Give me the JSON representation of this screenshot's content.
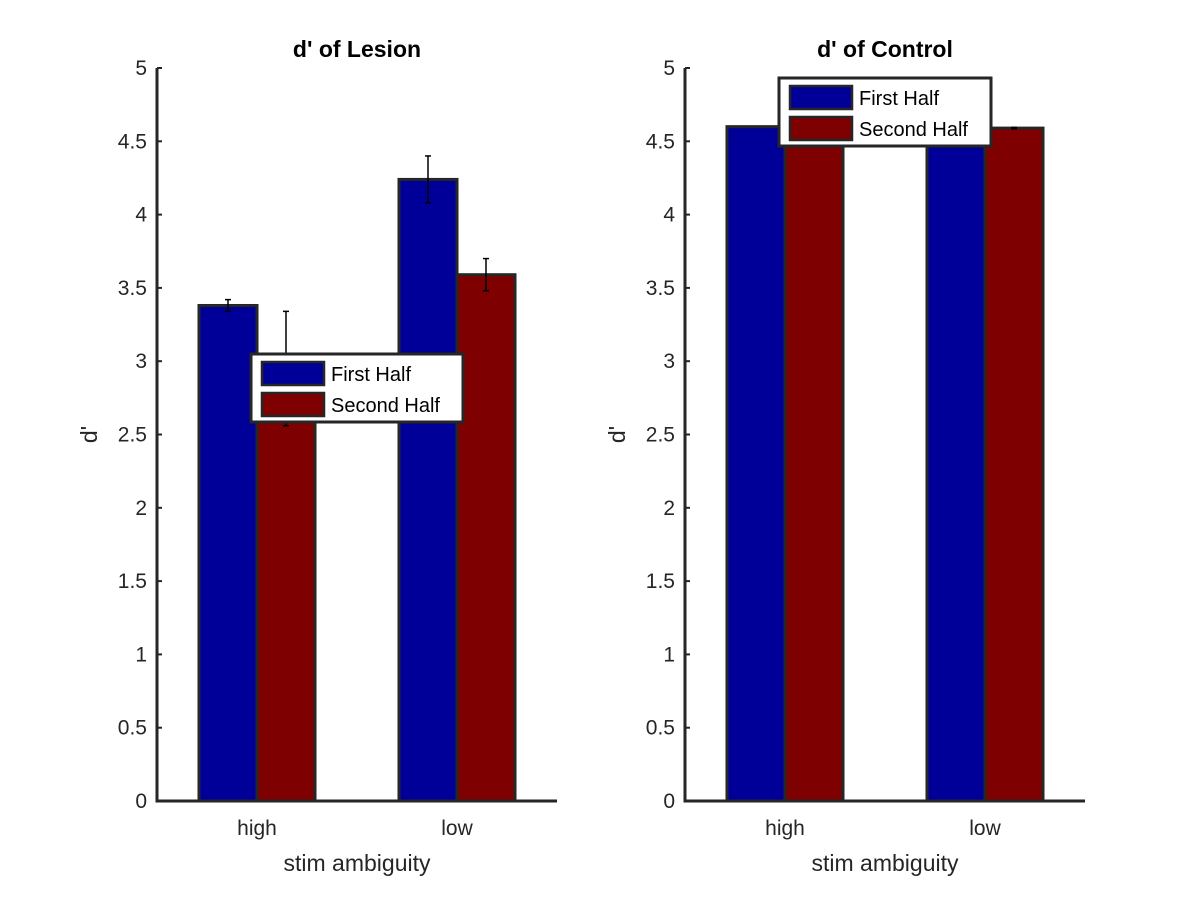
{
  "chart_data": [
    {
      "type": "bar",
      "title": "d' of Lesion",
      "xlabel": "stim ambiguity",
      "ylabel": "d'",
      "categories": [
        "high",
        "low"
      ],
      "ylim": [
        0,
        5
      ],
      "yticks": [
        "0",
        "0.5",
        "1",
        "1.5",
        "2",
        "2.5",
        "3",
        "3.5",
        "4",
        "4.5",
        "5"
      ],
      "grid": false,
      "legend_location": "center",
      "series": [
        {
          "name": "First Half",
          "values": [
            3.38,
            4.24
          ],
          "errors": [
            0.04,
            0.16
          ],
          "color": "#000099"
        },
        {
          "name": "Second Half",
          "values": [
            2.95,
            3.59
          ],
          "errors": [
            0.39,
            0.11
          ],
          "color": "#7F0000"
        }
      ]
    },
    {
      "type": "bar",
      "title": "d' of Control",
      "xlabel": "stim ambiguity",
      "ylabel": "d'",
      "categories": [
        "high",
        "low"
      ],
      "ylim": [
        0,
        5
      ],
      "yticks": [
        "0",
        "0.5",
        "1",
        "1.5",
        "2",
        "2.5",
        "3",
        "3.5",
        "4",
        "4.5",
        "5"
      ],
      "grid": false,
      "legend_location": "top",
      "series": [
        {
          "name": "First Half",
          "values": [
            4.6,
            4.59
          ],
          "errors": [
            0.0,
            0.0
          ],
          "color": "#000099"
        },
        {
          "name": "Second Half",
          "values": [
            4.6,
            4.59
          ],
          "errors": [
            0.0,
            0.005
          ],
          "color": "#7F0000"
        }
      ]
    }
  ]
}
